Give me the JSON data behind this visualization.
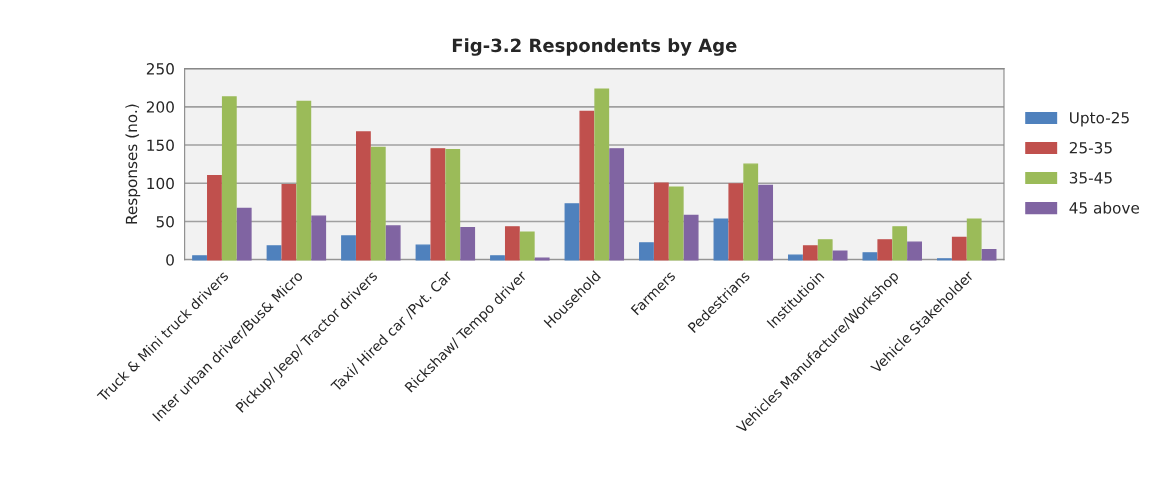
{
  "chart_data": {
    "type": "bar",
    "title": "Fig-3.2 Respondents by Age",
    "ylabel": "Responses (no.)",
    "categories": [
      "Truck & Mini truck drivers",
      "Inter urban driver/Bus& Micro",
      "Pickup/ Jeep/ Tractor drivers",
      "Taxi/ Hired car /Pvt. Car",
      "Rickshaw/ Tempo driver",
      "Household",
      "Farmers",
      "Pedestrians",
      "Institutioin",
      "Vehicles Manufacture/Workshop",
      "Vehicle Stakeholder"
    ],
    "series": [
      {
        "name": "Upto-25",
        "color": "#4f81bd",
        "values": [
          5,
          18,
          31,
          19,
          5,
          73,
          22,
          53,
          6,
          9,
          1
        ]
      },
      {
        "name": "25-35",
        "color": "#c0504d",
        "values": [
          110,
          98,
          167,
          145,
          43,
          194,
          100,
          99,
          18,
          26,
          29
        ]
      },
      {
        "name": "35-45",
        "color": "#9bbb59",
        "values": [
          213,
          207,
          147,
          144,
          36,
          223,
          95,
          125,
          26,
          43,
          53
        ]
      },
      {
        "name": "45 above",
        "color": "#8064a2",
        "values": [
          67,
          57,
          44,
          42,
          2,
          145,
          58,
          97,
          11,
          23,
          13
        ]
      }
    ],
    "ylim": [
      0,
      250
    ],
    "yticks": [
      0,
      50,
      100,
      150,
      200,
      250
    ],
    "grid": "y",
    "legend": "right"
  }
}
